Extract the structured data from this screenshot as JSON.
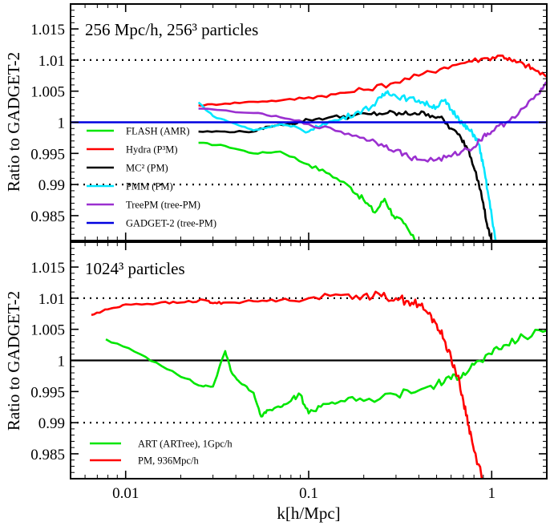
{
  "chart_data": [
    {
      "type": "line",
      "title": "256 Mpc/h, 256³ particles",
      "xlabel": "k[h/Mpc]",
      "ylabel": "Ratio to GADGET-2",
      "xscale": "log",
      "xlim": [
        0.005,
        2.0
      ],
      "ylim": [
        0.981,
        1.019
      ],
      "y_ticks": [
        "0.985",
        "0.99",
        "0.995",
        "1",
        "1.005",
        "1.01",
        "1.015"
      ],
      "ref_lines": [
        1.01,
        0.99
      ],
      "legend_position": "lower-left",
      "series": [
        {
          "name": "FLASH (AMR)",
          "color": "#00e600",
          "x": [
            0.025,
            0.035,
            0.05,
            0.07,
            0.1,
            0.13,
            0.17,
            0.2,
            0.23,
            0.26,
            0.29,
            0.33,
            0.38
          ],
          "y": [
            0.9967,
            0.9962,
            0.995,
            0.9953,
            0.9932,
            0.9917,
            0.9895,
            0.9875,
            0.9855,
            0.9877,
            0.985,
            0.9838,
            0.981
          ]
        },
        {
          "name": "Hydra (P³M)",
          "color": "#ff0000",
          "x": [
            0.025,
            0.035,
            0.05,
            0.07,
            0.1,
            0.14,
            0.2,
            0.28,
            0.4,
            0.55,
            0.75,
            0.95,
            1.15,
            1.3,
            1.5,
            1.7,
            2.0
          ],
          "y": [
            1.0027,
            1.003,
            1.0033,
            1.0035,
            1.004,
            1.0045,
            1.0052,
            1.0062,
            1.0075,
            1.0088,
            1.0098,
            1.0103,
            1.0107,
            1.0098,
            1.0093,
            1.0085,
            1.0073
          ]
        },
        {
          "name": "MC² (PM)",
          "color": "#000000",
          "x": [
            0.025,
            0.035,
            0.05,
            0.06,
            0.08,
            0.1,
            0.13,
            0.17,
            0.22,
            0.27,
            0.32,
            0.38,
            0.45,
            0.52,
            0.6,
            0.68,
            0.75,
            0.82,
            0.9,
            0.95,
            1.0
          ],
          "y": [
            0.9985,
            0.9985,
            0.9985,
            0.9993,
            0.9998,
            1.0004,
            1.0008,
            1.001,
            1.0013,
            1.0015,
            1.0013,
            1.0015,
            1.0013,
            1.0008,
            0.999,
            0.9975,
            0.9955,
            0.992,
            0.987,
            0.983,
            0.981
          ]
        },
        {
          "name": "PMM (PM)",
          "color": "#00e6ff",
          "x": [
            0.025,
            0.03,
            0.04,
            0.05,
            0.06,
            0.07,
            0.08,
            0.1,
            0.12,
            0.15,
            0.18,
            0.22,
            0.25,
            0.27,
            0.3,
            0.35,
            0.4,
            0.45,
            0.5,
            0.55,
            0.6,
            0.65,
            0.7,
            0.75,
            0.8,
            0.85,
            0.9,
            0.95,
            1.0,
            1.05
          ],
          "y": [
            1.0032,
            1.001,
            0.9997,
            0.9987,
            0.9992,
            0.9997,
            0.9993,
            0.9985,
            0.9998,
            1.0005,
            1.0015,
            1.0025,
            1.004,
            1.005,
            1.0042,
            1.0038,
            1.0035,
            1.0028,
            1.0025,
            1.0035,
            1.002,
            1.001,
            0.9995,
            0.9988,
            0.998,
            0.9965,
            0.993,
            0.989,
            0.985,
            0.981
          ]
        },
        {
          "name": "TreePM (tree-PM)",
          "color": "#9b30d0",
          "x": [
            0.025,
            0.05,
            0.07,
            0.1,
            0.15,
            0.2,
            0.25,
            0.3,
            0.35,
            0.4,
            0.5,
            0.6,
            0.7,
            0.8,
            0.9,
            1.0,
            1.2,
            1.5,
            1.8,
            2.0
          ],
          "y": [
            1.0022,
            1.0015,
            1.0008,
            0.9997,
            0.9985,
            0.9975,
            0.9965,
            0.9955,
            0.9945,
            0.994,
            0.994,
            0.9945,
            0.9955,
            0.996,
            0.9978,
            0.9985,
            1.0,
            1.0023,
            1.0045,
            1.0065
          ]
        },
        {
          "name": "GADGET-2 (tree-PM)",
          "color": "#0000e0",
          "x": [
            0.005,
            2.0
          ],
          "y": [
            1.0,
            1.0
          ]
        }
      ]
    },
    {
      "type": "line",
      "title": "1024³ particles",
      "xlabel": "k[h/Mpc]",
      "ylabel": "Ratio to GADGET-2",
      "xscale": "log",
      "xlim": [
        0.005,
        2.0
      ],
      "ylim": [
        0.981,
        1.019
      ],
      "x_ticks": [
        "0.01",
        "0.1",
        "1"
      ],
      "y_ticks": [
        "0.985",
        "0.99",
        "0.995",
        "1",
        "1.005",
        "1.01",
        "1.015"
      ],
      "ref_lines": [
        1.01,
        0.99
      ],
      "legend_position": "lower-left",
      "series": [
        {
          "name": "ART  (ARTree), 1Gpc/h",
          "color": "#00e600",
          "x": [
            0.0078,
            0.012,
            0.018,
            0.025,
            0.03,
            0.035,
            0.038,
            0.042,
            0.05,
            0.055,
            0.06,
            0.07,
            0.08,
            0.09,
            0.1,
            0.12,
            0.15,
            0.2,
            0.3,
            0.4,
            0.5,
            0.6,
            0.7,
            0.8,
            1.0,
            1.2,
            1.5,
            2.0
          ],
          "y": [
            1.0034,
            1.001,
            0.9983,
            0.996,
            0.9958,
            1.0015,
            0.998,
            0.9965,
            0.9948,
            0.991,
            0.992,
            0.9925,
            0.9935,
            0.9945,
            0.9915,
            0.993,
            0.9935,
            0.9935,
            0.9945,
            0.9952,
            0.9962,
            0.997,
            0.998,
            0.9993,
            1.001,
            1.0025,
            1.0038,
            1.0048
          ]
        },
        {
          "name": "PM, 936Mpc/h",
          "color": "#ff0000",
          "x": [
            0.0065,
            0.008,
            0.01,
            0.015,
            0.02,
            0.027,
            0.03,
            0.035,
            0.05,
            0.07,
            0.1,
            0.15,
            0.2,
            0.25,
            0.3,
            0.35,
            0.4,
            0.45,
            0.5,
            0.55,
            0.6,
            0.65,
            0.7,
            0.75,
            0.8,
            0.9
          ],
          "y": [
            1.0073,
            1.0082,
            1.009,
            1.0092,
            1.0093,
            1.0097,
            1.0092,
            1.0093,
            1.0095,
            1.0097,
            1.01,
            1.0105,
            1.0105,
            1.0103,
            1.01,
            1.0095,
            1.009,
            1.0075,
            1.0058,
            1.0033,
            1.0005,
            0.9975,
            0.9935,
            0.9895,
            0.9855,
            0.981
          ]
        }
      ]
    }
  ]
}
